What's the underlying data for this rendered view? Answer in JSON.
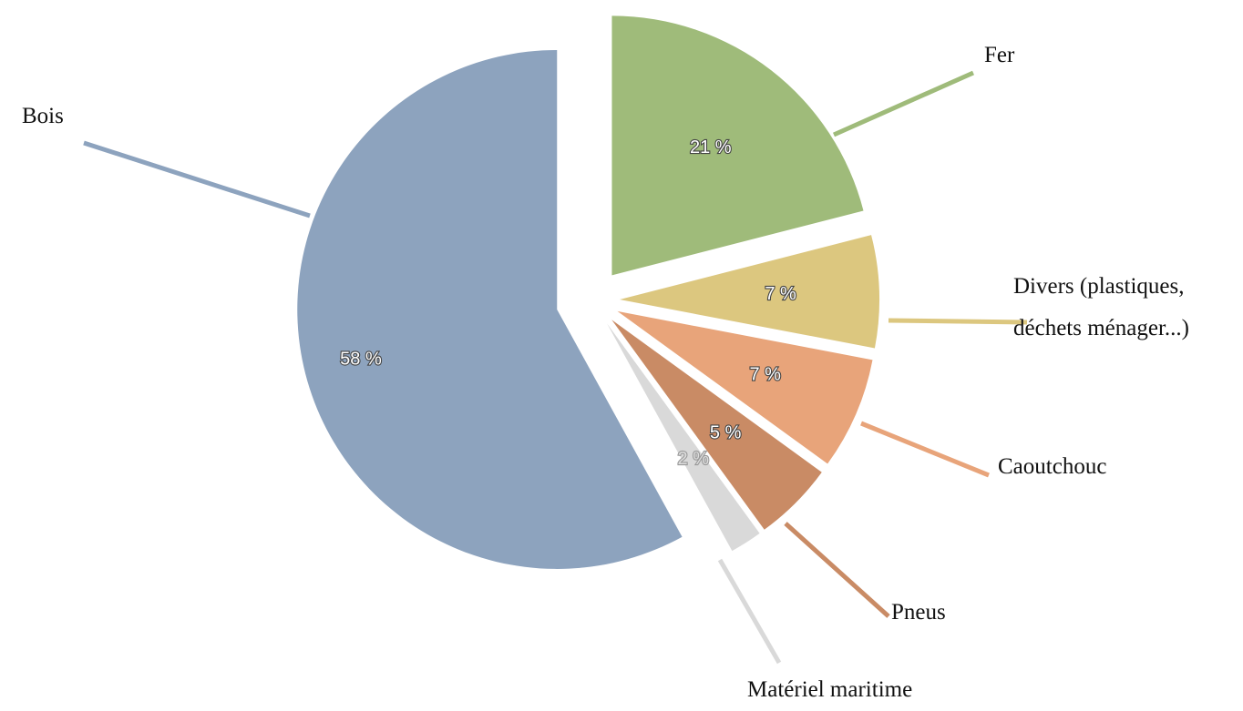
{
  "chart_data": {
    "type": "pie",
    "categories": [
      "Fer",
      "Divers (plastiques, déchets ménager...)",
      "Caoutchouc",
      "Pneus",
      "Matériel maritime",
      "Bois"
    ],
    "values": [
      21,
      7,
      7,
      5,
      2,
      58
    ],
    "value_labels": [
      "21 %",
      "7 %",
      "7 %",
      "5 %",
      "2 %",
      "58 %"
    ],
    "colors": [
      "#9fbb7a",
      "#dcc77f",
      "#e8a47a",
      "#c98b65",
      "#d9d9d9",
      "#8da3be"
    ]
  }
}
